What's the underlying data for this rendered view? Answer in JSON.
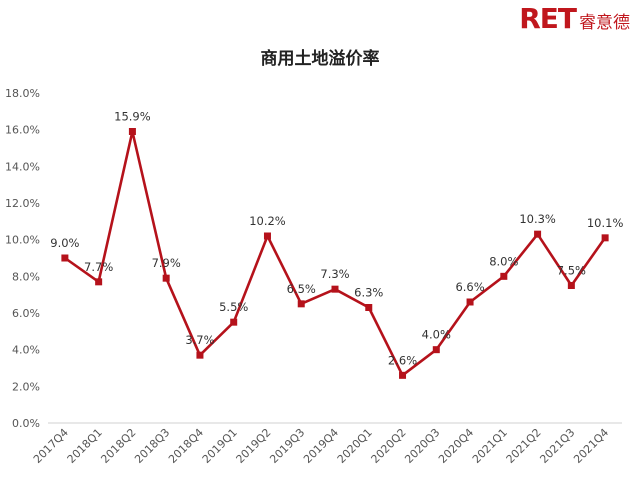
{
  "brand": {
    "logo_mark": "RET",
    "logo_cn": "睿意德",
    "color": "#c0171d"
  },
  "chart_data": {
    "type": "line",
    "title": "商用土地溢价率",
    "xlabel": "",
    "ylabel": "",
    "categories": [
      "2017Q4",
      "2018Q1",
      "2018Q2",
      "2018Q3",
      "2018Q4",
      "2019Q1",
      "2019Q2",
      "2019Q3",
      "2019Q4",
      "2020Q1",
      "2020Q2",
      "2020Q3",
      "2020Q4",
      "2021Q1",
      "2021Q2",
      "2021Q3",
      "2021Q4"
    ],
    "series": [
      {
        "values": [
          9.0,
          7.7,
          15.9,
          7.9,
          3.7,
          5.5,
          10.2,
          6.5,
          7.3,
          6.3,
          2.6,
          4.0,
          6.6,
          8.0,
          10.3,
          7.5,
          10.1
        ],
        "labels": [
          "9.0%",
          "7.7%",
          "15.9%",
          "7.9%",
          "3.7%",
          "5.5%",
          "10.2%",
          "6.5%",
          "7.3%",
          "6.3%",
          "2.6%",
          "4.0%",
          "6.6%",
          "8.0%",
          "10.3%",
          "7.5%",
          "10.1%"
        ],
        "color": "#b5121b"
      }
    ],
    "ylim": [
      0,
      18
    ],
    "yticks": [
      "0.0%",
      "2.0%",
      "4.0%",
      "6.0%",
      "8.0%",
      "10.0%",
      "12.0%",
      "14.0%",
      "16.0%",
      "18.0%"
    ],
    "grid": false,
    "legend": "none"
  }
}
